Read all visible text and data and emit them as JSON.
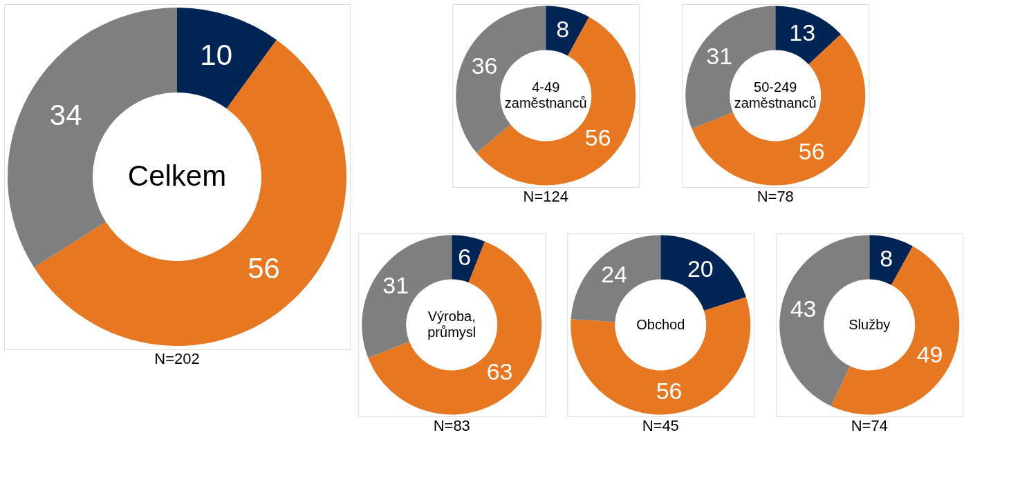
{
  "chart_data": [
    {
      "type": "donut",
      "title": "Celkem",
      "subtitle": "N=202",
      "categories": [
        null,
        null,
        null
      ],
      "values": [
        10,
        56,
        34
      ],
      "colors": [
        "#002554",
        "#e87722",
        "#7f7f7f"
      ],
      "data_labels": true,
      "legend": false
    },
    {
      "type": "donut",
      "title": "4-49 zaměstnanců",
      "subtitle": "N=124",
      "categories": [
        null,
        null,
        null
      ],
      "values": [
        8,
        56,
        36
      ],
      "colors": [
        "#002554",
        "#e87722",
        "#7f7f7f"
      ],
      "data_labels": true,
      "legend": false
    },
    {
      "type": "donut",
      "title": "50-249 zaměstnanců",
      "subtitle": "N=78",
      "categories": [
        null,
        null,
        null
      ],
      "values": [
        13,
        56,
        31
      ],
      "colors": [
        "#002554",
        "#e87722",
        "#7f7f7f"
      ],
      "data_labels": true,
      "legend": false
    },
    {
      "type": "donut",
      "title": "Výroba, průmysl",
      "subtitle": "N=83",
      "categories": [
        null,
        null,
        null
      ],
      "values": [
        6,
        63,
        31
      ],
      "colors": [
        "#002554",
        "#e87722",
        "#7f7f7f"
      ],
      "data_labels": true,
      "legend": false
    },
    {
      "type": "donut",
      "title": "Obchod",
      "subtitle": "N=45",
      "categories": [
        null,
        null,
        null
      ],
      "values": [
        20,
        56,
        24
      ],
      "colors": [
        "#002554",
        "#e87722",
        "#7f7f7f"
      ],
      "data_labels": true,
      "legend": false
    },
    {
      "type": "donut",
      "title": "Služby",
      "subtitle": "N=74",
      "categories": [
        null,
        null,
        null
      ],
      "values": [
        8,
        49,
        43
      ],
      "colors": [
        "#002554",
        "#e87722",
        "#7f7f7f"
      ],
      "data_labels": true,
      "legend": false
    }
  ]
}
